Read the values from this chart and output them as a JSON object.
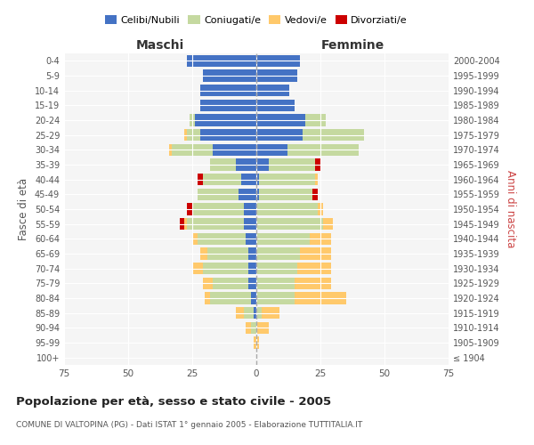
{
  "age_groups": [
    "100+",
    "95-99",
    "90-94",
    "85-89",
    "80-84",
    "75-79",
    "70-74",
    "65-69",
    "60-64",
    "55-59",
    "50-54",
    "45-49",
    "40-44",
    "35-39",
    "30-34",
    "25-29",
    "20-24",
    "15-19",
    "10-14",
    "5-9",
    "0-4"
  ],
  "birth_years": [
    "≤ 1904",
    "1905-1909",
    "1910-1914",
    "1915-1919",
    "1920-1924",
    "1925-1929",
    "1930-1934",
    "1935-1939",
    "1940-1944",
    "1945-1949",
    "1950-1954",
    "1955-1959",
    "1960-1964",
    "1965-1969",
    "1970-1974",
    "1975-1979",
    "1980-1984",
    "1985-1989",
    "1990-1994",
    "1995-1999",
    "2000-2004"
  ],
  "colors": {
    "celibi": "#4472c4",
    "coniugati": "#c5d9a0",
    "vedovi": "#ffc96b",
    "divorziati": "#cc0000"
  },
  "maschi": {
    "celibi": [
      0,
      0,
      0,
      1,
      2,
      3,
      3,
      3,
      4,
      5,
      5,
      7,
      6,
      8,
      17,
      22,
      24,
      22,
      22,
      21,
      27
    ],
    "coniugati": [
      0,
      0,
      2,
      4,
      16,
      14,
      18,
      16,
      19,
      22,
      20,
      16,
      15,
      10,
      16,
      5,
      2,
      0,
      0,
      0,
      0
    ],
    "vedovi": [
      0,
      1,
      2,
      3,
      2,
      4,
      4,
      3,
      2,
      1,
      0,
      0,
      0,
      0,
      1,
      1,
      0,
      0,
      0,
      0,
      0
    ],
    "divorziati": [
      0,
      0,
      0,
      0,
      0,
      0,
      0,
      0,
      0,
      2,
      2,
      0,
      2,
      0,
      0,
      0,
      0,
      0,
      0,
      0,
      0
    ]
  },
  "femmine": {
    "celibi": [
      0,
      0,
      0,
      0,
      0,
      0,
      0,
      0,
      0,
      0,
      0,
      1,
      1,
      5,
      12,
      18,
      19,
      15,
      13,
      16,
      17
    ],
    "coniugati": [
      0,
      0,
      0,
      2,
      15,
      15,
      16,
      17,
      21,
      26,
      24,
      21,
      22,
      18,
      28,
      24,
      8,
      0,
      0,
      0,
      0
    ],
    "vedovi": [
      0,
      1,
      5,
      7,
      20,
      14,
      13,
      12,
      8,
      4,
      2,
      0,
      1,
      0,
      0,
      0,
      0,
      0,
      0,
      0,
      0
    ],
    "divorziati": [
      0,
      0,
      0,
      0,
      0,
      0,
      0,
      0,
      0,
      0,
      0,
      2,
      0,
      2,
      0,
      0,
      0,
      0,
      0,
      0,
      0
    ]
  },
  "xlim": 75,
  "title": "Popolazione per età, sesso e stato civile - 2005",
  "subtitle": "COMUNE DI VALTOPINA (PG) - Dati ISTAT 1° gennaio 2005 - Elaborazione TUTTITALIA.IT",
  "ylabel_left": "Fasce di età",
  "ylabel_right": "Anni di nascita",
  "header_left": "Maschi",
  "header_right": "Femmine",
  "legend_labels": [
    "Celibi/Nubili",
    "Coniugati/e",
    "Vedovi/e",
    "Divorziati/e"
  ],
  "bg_color": "#f5f5f5"
}
